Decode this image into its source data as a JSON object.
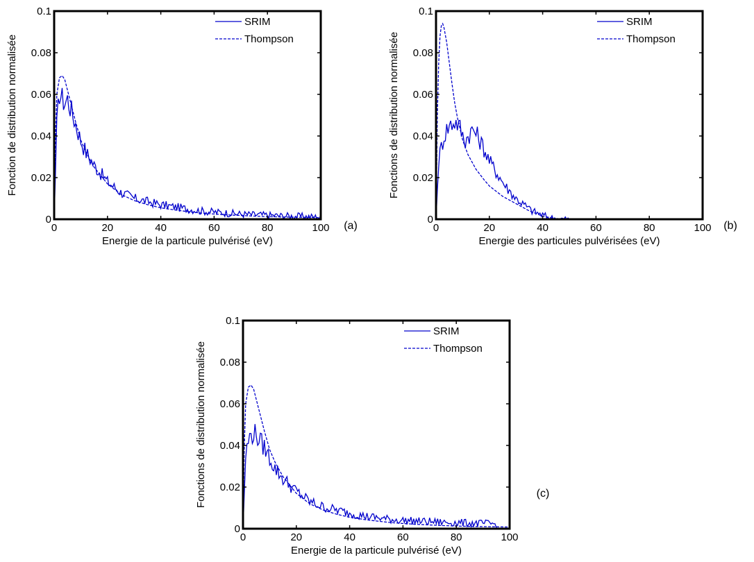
{
  "chart_data": [
    {
      "type": "line",
      "panel_label": "(a)",
      "xlabel": "Energie de la particule pulvérisé (eV)",
      "ylabel": "Fonction de distribution normalisée",
      "xlim": [
        0,
        100
      ],
      "ylim": [
        0,
        0.1
      ],
      "xticks": [
        "0",
        "20",
        "40",
        "60",
        "80",
        "100"
      ],
      "yticks": [
        "0",
        "0.02",
        "0.04",
        "0.06",
        "0.08",
        "0.1"
      ],
      "legend": "top-right",
      "series": [
        {
          "name": "SRIM",
          "style": "solid",
          "color": "#0000cc",
          "xmax": 100,
          "x": [
            0,
            1,
            2,
            3,
            4,
            5,
            6,
            8,
            10,
            12,
            15,
            20,
            25,
            30,
            35,
            40,
            45,
            50,
            55,
            60,
            65,
            70,
            75,
            80,
            85,
            90,
            95,
            100
          ],
          "y": [
            0,
            0.045,
            0.061,
            0.058,
            0.056,
            0.058,
            0.054,
            0.046,
            0.038,
            0.032,
            0.026,
            0.018,
            0.013,
            0.01,
            0.0085,
            0.007,
            0.006,
            0.005,
            0.004,
            0.0035,
            0.003,
            0.0025,
            0.0022,
            0.002,
            0.0017,
            0.0015,
            0.0013,
            0.001
          ]
        },
        {
          "name": "Thompson",
          "style": "dashed",
          "color": "#0000cc",
          "xmax": 100,
          "x": [
            0,
            0.5,
            1,
            2,
            3,
            4,
            5,
            6,
            8,
            10,
            12,
            15,
            20,
            25,
            30,
            35,
            40,
            45,
            50,
            55,
            60,
            65,
            70,
            75,
            80,
            85,
            90,
            95,
            100
          ],
          "y": [
            0,
            0.04,
            0.06,
            0.068,
            0.069,
            0.067,
            0.062,
            0.057,
            0.047,
            0.038,
            0.032,
            0.025,
            0.017,
            0.012,
            0.009,
            0.007,
            0.0055,
            0.0045,
            0.0037,
            0.003,
            0.0025,
            0.0021,
            0.0018,
            0.0015,
            0.0013,
            0.0011,
            0.001,
            0.0009,
            0.0008
          ]
        }
      ]
    },
    {
      "type": "line",
      "panel_label": "(b)",
      "xlabel": "Energie des particules pulvérisées (eV)",
      "ylabel": "Fonctions de distribution normalisée",
      "xlim": [
        0,
        100
      ],
      "ylim": [
        0,
        0.1
      ],
      "xticks": [
        "0",
        "20",
        "40",
        "60",
        "80",
        "100"
      ],
      "yticks": [
        "0",
        "0.02",
        "0.04",
        "0.06",
        "0.08",
        "0.1"
      ],
      "legend": "top-right",
      "series": [
        {
          "name": "SRIM",
          "style": "solid",
          "color": "#0000cc",
          "xmax": 95,
          "x": [
            0,
            1,
            2,
            3,
            4,
            5,
            6,
            7,
            8,
            9,
            10,
            11,
            12,
            13,
            14,
            15,
            16,
            18,
            20,
            22,
            24,
            26,
            28,
            30,
            32,
            34,
            36,
            38,
            40,
            42,
            44,
            46,
            48,
            50,
            55,
            60,
            70,
            80,
            90,
            95
          ],
          "y": [
            0,
            0.028,
            0.035,
            0.04,
            0.043,
            0.045,
            0.046,
            0.047,
            0.046,
            0.044,
            0.04,
            0.038,
            0.04,
            0.042,
            0.043,
            0.041,
            0.039,
            0.034,
            0.028,
            0.024,
            0.02,
            0.016,
            0.013,
            0.01,
            0.008,
            0.006,
            0.004,
            0.003,
            0.002,
            0.001,
            0.0005,
            0.0002,
            0.0001,
            0,
            0,
            0,
            0,
            0,
            0,
            0
          ]
        },
        {
          "name": "Thompson",
          "style": "dashed",
          "color": "#0000cc",
          "xmax": 50,
          "x": [
            0,
            0.5,
            1,
            1.5,
            2,
            2.5,
            3,
            4,
            5,
            6,
            7,
            8,
            10,
            12,
            15,
            18,
            20,
            25,
            30,
            35,
            40,
            45,
            50
          ],
          "y": [
            0,
            0.05,
            0.075,
            0.088,
            0.093,
            0.094,
            0.092,
            0.085,
            0.075,
            0.065,
            0.056,
            0.049,
            0.038,
            0.031,
            0.024,
            0.019,
            0.016,
            0.011,
            0.0075,
            0.004,
            0.0015,
            0.0003,
            0
          ]
        }
      ]
    },
    {
      "type": "line",
      "panel_label": "(c)",
      "xlabel": "Energie de la particule pulvérisé (eV)",
      "ylabel": "Fonctions de distribution normalisée",
      "xlim": [
        0,
        100
      ],
      "ylim": [
        0,
        0.1
      ],
      "xticks": [
        "0",
        "20",
        "40",
        "60",
        "80",
        "100"
      ],
      "yticks": [
        "0",
        "0.02",
        "0.04",
        "0.06",
        "0.08",
        "0.1"
      ],
      "legend": "top-right",
      "series": [
        {
          "name": "SRIM",
          "style": "solid",
          "color": "#0000cc",
          "xmax": 95,
          "x": [
            0,
            1,
            2,
            3,
            4,
            5,
            6,
            8,
            10,
            12,
            15,
            20,
            25,
            30,
            35,
            40,
            45,
            50,
            55,
            60,
            65,
            70,
            75,
            80,
            85,
            90,
            95
          ],
          "y": [
            0,
            0.035,
            0.042,
            0.045,
            0.046,
            0.045,
            0.043,
            0.039,
            0.034,
            0.029,
            0.024,
            0.018,
            0.013,
            0.0105,
            0.009,
            0.0075,
            0.0062,
            0.0053,
            0.0045,
            0.004,
            0.0037,
            0.0034,
            0.0031,
            0.0029,
            0.0027,
            0.0025,
            0.0023
          ]
        },
        {
          "name": "Thompson",
          "style": "dashed",
          "color": "#0000cc",
          "xmax": 100,
          "x": [
            0,
            0.5,
            1,
            2,
            3,
            4,
            5,
            6,
            8,
            10,
            12,
            15,
            20,
            25,
            30,
            35,
            40,
            45,
            50,
            55,
            60,
            65,
            70,
            75,
            80,
            85,
            90,
            95,
            100
          ],
          "y": [
            0,
            0.04,
            0.06,
            0.068,
            0.069,
            0.067,
            0.062,
            0.057,
            0.047,
            0.038,
            0.032,
            0.025,
            0.017,
            0.012,
            0.009,
            0.007,
            0.0055,
            0.0045,
            0.0037,
            0.003,
            0.0025,
            0.0021,
            0.0018,
            0.0015,
            0.0013,
            0.0011,
            0.001,
            0.0009,
            0.0008
          ]
        }
      ]
    }
  ]
}
